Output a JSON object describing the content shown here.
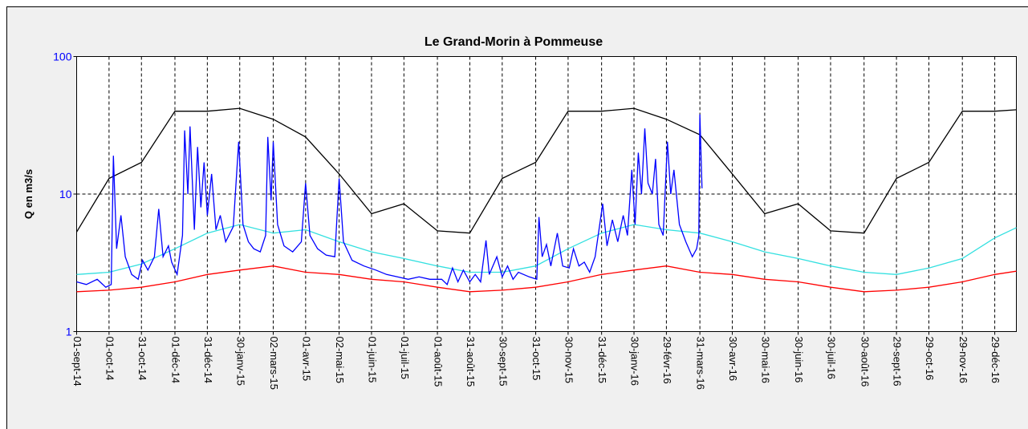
{
  "chart_data": {
    "type": "line",
    "title": "Le Grand-Morin à Pommeuse",
    "y_label": "Q en m3/s",
    "log_scale": true,
    "grid": true,
    "ylim": [
      1,
      100
    ],
    "yticks": [
      1,
      10,
      100
    ],
    "ytick_color": "#0000ff",
    "xlim": [
      "2014-09-01",
      "2017-01-18"
    ],
    "xticks": [
      {
        "value": "2014-09-01",
        "label": "01-sept-14"
      },
      {
        "value": "2014-10-01",
        "label": "01-oct-14"
      },
      {
        "value": "2014-10-31",
        "label": "31-oct-14"
      },
      {
        "value": "2014-12-01",
        "label": "01-déc-14"
      },
      {
        "value": "2014-12-31",
        "label": "31-déc-14"
      },
      {
        "value": "2015-01-30",
        "label": "30-janv-15"
      },
      {
        "value": "2015-03-02",
        "label": "02-mars-15"
      },
      {
        "value": "2015-04-01",
        "label": "01-avr-15"
      },
      {
        "value": "2015-05-02",
        "label": "02-mai-15"
      },
      {
        "value": "2015-06-01",
        "label": "01-juin-15"
      },
      {
        "value": "2015-07-01",
        "label": "01-juil-15"
      },
      {
        "value": "2015-08-01",
        "label": "01-août-15"
      },
      {
        "value": "2015-08-31",
        "label": "31-août-15"
      },
      {
        "value": "2015-09-30",
        "label": "30-sept-15"
      },
      {
        "value": "2015-10-31",
        "label": "31-oct-15"
      },
      {
        "value": "2015-11-30",
        "label": "30-nov-15"
      },
      {
        "value": "2015-12-31",
        "label": "31-déc-15"
      },
      {
        "value": "2016-01-30",
        "label": "30-janv-16"
      },
      {
        "value": "2016-02-29",
        "label": "29-févr-16"
      },
      {
        "value": "2016-03-31",
        "label": "31-mars-16"
      },
      {
        "value": "2016-04-30",
        "label": "30-avr-16"
      },
      {
        "value": "2016-05-30",
        "label": "30-mai-16"
      },
      {
        "value": "2016-06-30",
        "label": "30-juin-16"
      },
      {
        "value": "2016-07-30",
        "label": "30-juil-16"
      },
      {
        "value": "2016-08-30",
        "label": "30-août-16"
      },
      {
        "value": "2016-09-29",
        "label": "29-sept-16"
      },
      {
        "value": "2016-10-29",
        "label": "29-oct-16"
      },
      {
        "value": "2016-11-29",
        "label": "29-nov-16"
      },
      {
        "value": "2016-12-29",
        "label": "29-déc-16"
      }
    ],
    "series": [
      {
        "color": "#000000",
        "x": [
          "2014-09-01",
          "2014-10-01",
          "2014-10-31",
          "2014-12-01",
          "2014-12-31",
          "2015-01-30",
          "2015-03-02",
          "2015-04-01",
          "2015-05-02",
          "2015-06-01",
          "2015-07-01",
          "2015-08-01",
          "2015-08-31",
          "2015-09-30",
          "2015-10-31",
          "2015-11-30",
          "2015-12-31",
          "2016-01-30",
          "2016-02-29",
          "2016-03-31",
          "2016-04-30",
          "2016-05-30",
          "2016-06-30",
          "2016-07-30",
          "2016-08-30",
          "2016-09-29",
          "2016-10-29",
          "2016-11-29",
          "2016-12-29",
          "2017-01-18"
        ],
        "values": [
          5.3,
          13,
          17,
          40,
          40,
          42,
          35,
          26,
          14,
          7.2,
          8.5,
          5.4,
          5.2,
          13,
          17,
          40,
          40,
          42,
          35,
          27,
          14,
          7.2,
          8.5,
          5.4,
          5.2,
          13,
          17,
          40,
          40,
          41
        ]
      },
      {
        "color": "#33e0e0",
        "x": [
          "2014-09-01",
          "2014-10-01",
          "2014-10-31",
          "2014-12-01",
          "2014-12-31",
          "2015-01-30",
          "2015-03-02",
          "2015-04-01",
          "2015-05-02",
          "2015-06-01",
          "2015-07-01",
          "2015-08-01",
          "2015-08-31",
          "2015-09-30",
          "2015-10-31",
          "2015-11-30",
          "2015-12-31",
          "2016-01-30",
          "2016-02-29",
          "2016-03-31",
          "2016-04-30",
          "2016-05-30",
          "2016-06-30",
          "2016-07-30",
          "2016-08-30",
          "2016-09-29",
          "2016-10-29",
          "2016-11-29",
          "2016-12-29",
          "2017-01-18"
        ],
        "values": [
          2.6,
          2.7,
          3.1,
          4.0,
          5.2,
          6.0,
          5.2,
          5.5,
          4.5,
          3.8,
          3.4,
          3.0,
          2.7,
          2.7,
          3.0,
          4.0,
          5.2,
          6.0,
          5.5,
          5.2,
          4.5,
          3.8,
          3.4,
          3.0,
          2.7,
          2.6,
          2.9,
          3.4,
          4.8,
          5.7
        ]
      },
      {
        "color": "#ff0000",
        "x": [
          "2014-09-01",
          "2014-10-01",
          "2014-10-31",
          "2014-12-01",
          "2014-12-31",
          "2015-01-30",
          "2015-03-02",
          "2015-04-01",
          "2015-05-02",
          "2015-06-01",
          "2015-07-01",
          "2015-08-01",
          "2015-08-31",
          "2015-09-30",
          "2015-10-31",
          "2015-11-30",
          "2015-12-31",
          "2016-01-30",
          "2016-02-29",
          "2016-03-31",
          "2016-04-30",
          "2016-05-30",
          "2016-06-30",
          "2016-07-30",
          "2016-08-30",
          "2016-09-29",
          "2016-10-29",
          "2016-11-29",
          "2016-12-29",
          "2017-01-18"
        ],
        "values": [
          1.95,
          2.0,
          2.1,
          2.3,
          2.6,
          2.8,
          3.0,
          2.7,
          2.6,
          2.4,
          2.3,
          2.1,
          1.95,
          2.0,
          2.1,
          2.3,
          2.6,
          2.8,
          3.0,
          2.7,
          2.6,
          2.4,
          2.3,
          2.1,
          1.95,
          2.0,
          2.1,
          2.3,
          2.6,
          2.75
        ]
      },
      {
        "color": "#0000ff",
        "x": [
          "2014-09-01",
          "2014-09-10",
          "2014-09-20",
          "2014-09-28",
          "2014-10-03",
          "2014-10-05",
          "2014-10-08",
          "2014-10-12",
          "2014-10-16",
          "2014-10-22",
          "2014-10-28",
          "2014-11-01",
          "2014-11-06",
          "2014-11-12",
          "2014-11-16",
          "2014-11-20",
          "2014-11-25",
          "2014-11-28",
          "2014-12-03",
          "2014-12-08",
          "2014-12-10",
          "2014-12-13",
          "2014-12-15",
          "2014-12-19",
          "2014-12-22",
          "2014-12-25",
          "2014-12-28",
          "2014-12-31",
          "2015-01-04",
          "2015-01-08",
          "2015-01-12",
          "2015-01-17",
          "2015-01-24",
          "2015-01-29",
          "2015-02-02",
          "2015-02-07",
          "2015-02-12",
          "2015-02-18",
          "2015-02-23",
          "2015-02-25",
          "2015-02-28",
          "2015-03-02",
          "2015-03-06",
          "2015-03-12",
          "2015-03-20",
          "2015-03-28",
          "2015-04-01",
          "2015-04-05",
          "2015-04-12",
          "2015-04-20",
          "2015-04-28",
          "2015-05-02",
          "2015-05-06",
          "2015-05-14",
          "2015-05-25",
          "2015-06-05",
          "2015-06-15",
          "2015-06-25",
          "2015-07-05",
          "2015-07-15",
          "2015-07-25",
          "2015-08-05",
          "2015-08-10",
          "2015-08-15",
          "2015-08-20",
          "2015-08-25",
          "2015-08-31",
          "2015-09-05",
          "2015-09-10",
          "2015-09-15",
          "2015-09-18",
          "2015-09-25",
          "2015-09-30",
          "2015-10-05",
          "2015-10-10",
          "2015-10-15",
          "2015-10-25",
          "2015-11-01",
          "2015-11-03",
          "2015-11-06",
          "2015-11-10",
          "2015-11-14",
          "2015-11-20",
          "2015-11-25",
          "2015-12-01",
          "2015-12-05",
          "2015-12-10",
          "2015-12-15",
          "2015-12-20",
          "2015-12-25",
          "2016-01-01",
          "2016-01-05",
          "2016-01-10",
          "2016-01-15",
          "2016-01-20",
          "2016-01-24",
          "2016-01-28",
          "2016-01-31",
          "2016-02-03",
          "2016-02-06",
          "2016-02-09",
          "2016-02-12",
          "2016-02-16",
          "2016-02-19",
          "2016-02-22",
          "2016-02-26",
          "2016-03-01",
          "2016-03-04",
          "2016-03-07",
          "2016-03-12",
          "2016-03-18",
          "2016-03-24",
          "2016-03-28",
          "2016-03-30",
          "2016-03-31",
          "2016-04-02"
        ],
        "values": [
          2.3,
          2.2,
          2.4,
          2.1,
          2.2,
          19,
          4,
          7,
          3.5,
          2.6,
          2.4,
          3.3,
          2.8,
          3.5,
          7.8,
          3.5,
          4.2,
          3.2,
          2.6,
          5,
          29,
          10,
          31,
          5.5,
          22,
          8,
          17,
          7,
          14,
          5.5,
          7,
          4.5,
          5.8,
          24,
          6,
          4.5,
          4.0,
          3.8,
          5,
          26,
          9,
          24,
          6,
          4.2,
          3.8,
          4.5,
          12,
          5,
          4,
          3.6,
          3.5,
          13,
          4.5,
          3.3,
          3.0,
          2.8,
          2.6,
          2.5,
          2.4,
          2.5,
          2.4,
          2.4,
          2.2,
          2.9,
          2.3,
          2.8,
          2.3,
          2.6,
          2.3,
          4.6,
          2.6,
          3.5,
          2.5,
          3.0,
          2.4,
          2.7,
          2.5,
          2.4,
          6.8,
          3.5,
          4.3,
          3.0,
          5.2,
          3.0,
          2.9,
          4.0,
          3.0,
          3.2,
          2.7,
          3.5,
          8.5,
          4.2,
          6.5,
          4.5,
          7,
          5,
          15,
          6,
          20,
          10,
          30,
          12,
          10,
          18,
          6,
          5,
          24,
          10,
          15,
          6,
          4.5,
          3.5,
          4,
          5,
          38,
          11
        ]
      }
    ]
  }
}
